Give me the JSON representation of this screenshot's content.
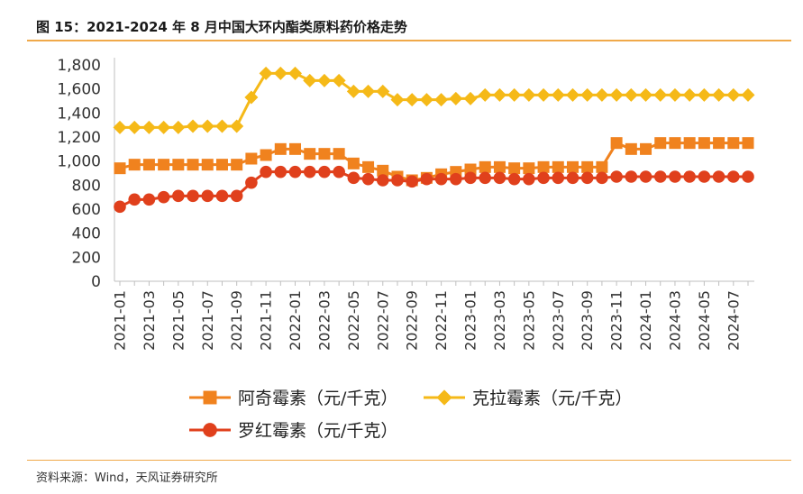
{
  "figure": {
    "title": "图 15：2021-2024 年 8 月中国大环内酯类原料药价格走势",
    "source": "资料来源：Wind，天风证券研究所"
  },
  "colors": {
    "accent_rule": "#f0a94a",
    "axis": "#bfbfbf"
  },
  "chart_data": {
    "type": "line",
    "x": [
      "2021-01",
      "2021-02",
      "2021-03",
      "2021-04",
      "2021-05",
      "2021-06",
      "2021-07",
      "2021-08",
      "2021-09",
      "2021-10",
      "2021-11",
      "2021-12",
      "2022-01",
      "2022-02",
      "2022-03",
      "2022-04",
      "2022-05",
      "2022-06",
      "2022-07",
      "2022-08",
      "2022-09",
      "2022-10",
      "2022-11",
      "2022-12",
      "2023-01",
      "2023-02",
      "2023-03",
      "2023-04",
      "2023-05",
      "2023-06",
      "2023-07",
      "2023-08",
      "2023-09",
      "2023-10",
      "2023-11",
      "2023-12",
      "2024-01",
      "2024-02",
      "2024-03",
      "2024-04",
      "2024-05",
      "2024-06",
      "2024-07",
      "2024-08"
    ],
    "x_tick_labels": [
      "2021-01",
      "2021-03",
      "2021-05",
      "2021-07",
      "2021-09",
      "2021-11",
      "2022-01",
      "2022-03",
      "2022-05",
      "2022-07",
      "2022-09",
      "2022-11",
      "2023-01",
      "2023-03",
      "2023-05",
      "2023-07",
      "2023-09",
      "2023-11",
      "2024-01",
      "2024-03",
      "2024-05",
      "2024-07"
    ],
    "ylim": [
      0,
      1800
    ],
    "y_ticks": [
      "0",
      "200",
      "400",
      "600",
      "800",
      "1,000",
      "1,200",
      "1,400",
      "1,600",
      "1,800"
    ],
    "y_tick_values": [
      0,
      200,
      400,
      600,
      800,
      1000,
      1200,
      1400,
      1600,
      1800
    ],
    "legend_position": "bottom",
    "series": [
      {
        "name": "阿奇霉素（元/千克）",
        "color": "#f0821e",
        "marker": "square",
        "values": [
          940,
          970,
          970,
          970,
          970,
          970,
          970,
          970,
          970,
          1020,
          1050,
          1100,
          1100,
          1060,
          1060,
          1060,
          980,
          950,
          920,
          870,
          840,
          860,
          890,
          910,
          930,
          950,
          950,
          940,
          940,
          950,
          950,
          950,
          950,
          950,
          1150,
          1100,
          1100,
          1150,
          1150,
          1150,
          1150,
          1150,
          1150,
          1150
        ]
      },
      {
        "name": "克拉霉素（元/千克）",
        "color": "#f5b918",
        "marker": "diamond",
        "values": [
          1280,
          1280,
          1280,
          1280,
          1280,
          1290,
          1290,
          1290,
          1290,
          1530,
          1730,
          1730,
          1730,
          1670,
          1670,
          1670,
          1580,
          1580,
          1580,
          1510,
          1510,
          1510,
          1510,
          1520,
          1520,
          1550,
          1550,
          1550,
          1550,
          1550,
          1550,
          1550,
          1550,
          1550,
          1550,
          1550,
          1550,
          1550,
          1550,
          1550,
          1550,
          1550,
          1550,
          1550
        ]
      },
      {
        "name": "罗红霉素（元/千克）",
        "color": "#e0401c",
        "marker": "circle",
        "values": [
          620,
          680,
          680,
          700,
          710,
          710,
          710,
          710,
          710,
          820,
          910,
          910,
          910,
          910,
          910,
          910,
          860,
          850,
          840,
          840,
          830,
          850,
          850,
          850,
          860,
          860,
          860,
          850,
          850,
          860,
          860,
          860,
          860,
          860,
          870,
          870,
          870,
          870,
          870,
          870,
          870,
          870,
          870,
          870
        ]
      }
    ]
  }
}
